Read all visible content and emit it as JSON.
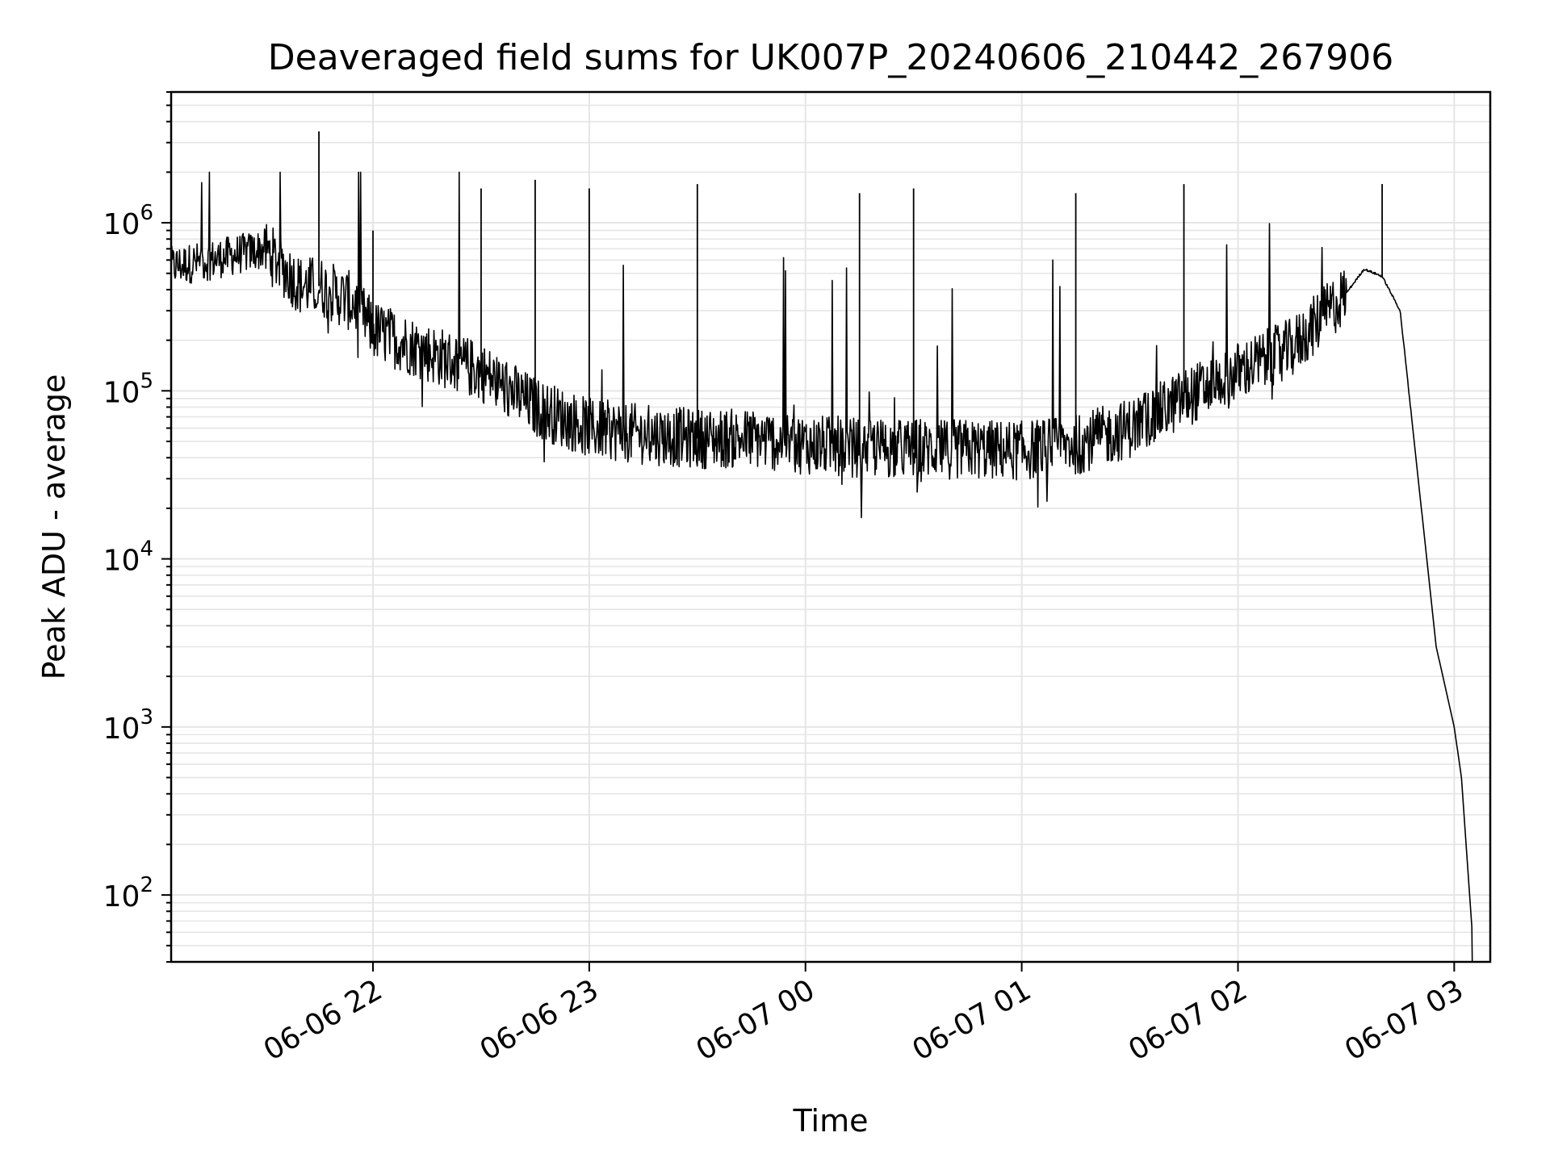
{
  "chart_data": {
    "type": "line",
    "title": "Deaveraged field sums for UK007P_20240606_210442_267906",
    "xlabel": "Time",
    "ylabel": "Peak ADU - average",
    "yscale": "log",
    "ylim": [
      40,
      6000000
    ],
    "xlim": [
      "06-06 21:04",
      "06-07 03:10"
    ],
    "grid": true,
    "line_color": "#000000",
    "grid_color": "#e5e5e5",
    "x_ticks": [
      "06-06 22",
      "06-06 23",
      "06-07 00",
      "06-07 01",
      "06-07 02",
      "06-07 03"
    ],
    "y_ticks": [
      {
        "base": "10",
        "exp": "2"
      },
      {
        "base": "10",
        "exp": "3"
      },
      {
        "base": "10",
        "exp": "4"
      },
      {
        "base": "10",
        "exp": "5"
      },
      {
        "base": "10",
        "exp": "6"
      }
    ],
    "x": [
      "21:04",
      "21:15",
      "21:30",
      "21:40",
      "21:45",
      "21:55",
      "22:00",
      "22:15",
      "22:30",
      "22:45",
      "23:00",
      "23:15",
      "23:30",
      "23:45",
      "00:00",
      "00:15",
      "00:30",
      "00:45",
      "01:00",
      "01:15",
      "01:30",
      "01:45",
      "02:00",
      "02:15",
      "02:30",
      "02:35",
      "02:40",
      "02:45",
      "02:50",
      "02:55",
      "03:00",
      "03:02",
      "03:05"
    ],
    "values": [
      550000,
      600000,
      700000,
      420000,
      420000,
      330000,
      230000,
      170000,
      130000,
      80000,
      60000,
      55000,
      52000,
      52000,
      48000,
      46000,
      45000,
      45000,
      44000,
      48000,
      60000,
      90000,
      130000,
      180000,
      380000,
      530000,
      480000,
      300000,
      30000,
      3000,
      1000,
      500,
      60
    ],
    "spikes": [
      {
        "x": "21:45",
        "y": 3500000
      },
      {
        "x": "22:00",
        "y": 900000
      },
      {
        "x": "22:30",
        "y": 1600000
      },
      {
        "x": "22:45",
        "y": 1800000
      },
      {
        "x": "23:00",
        "y": 1600000
      },
      {
        "x": "23:30",
        "y": 1700000
      },
      {
        "x": "00:15",
        "y": 1500000
      },
      {
        "x": "00:30",
        "y": 1600000
      },
      {
        "x": "01:15",
        "y": 1500000
      },
      {
        "x": "01:45",
        "y": 1700000
      },
      {
        "x": "02:40",
        "y": 1700000
      }
    ]
  }
}
